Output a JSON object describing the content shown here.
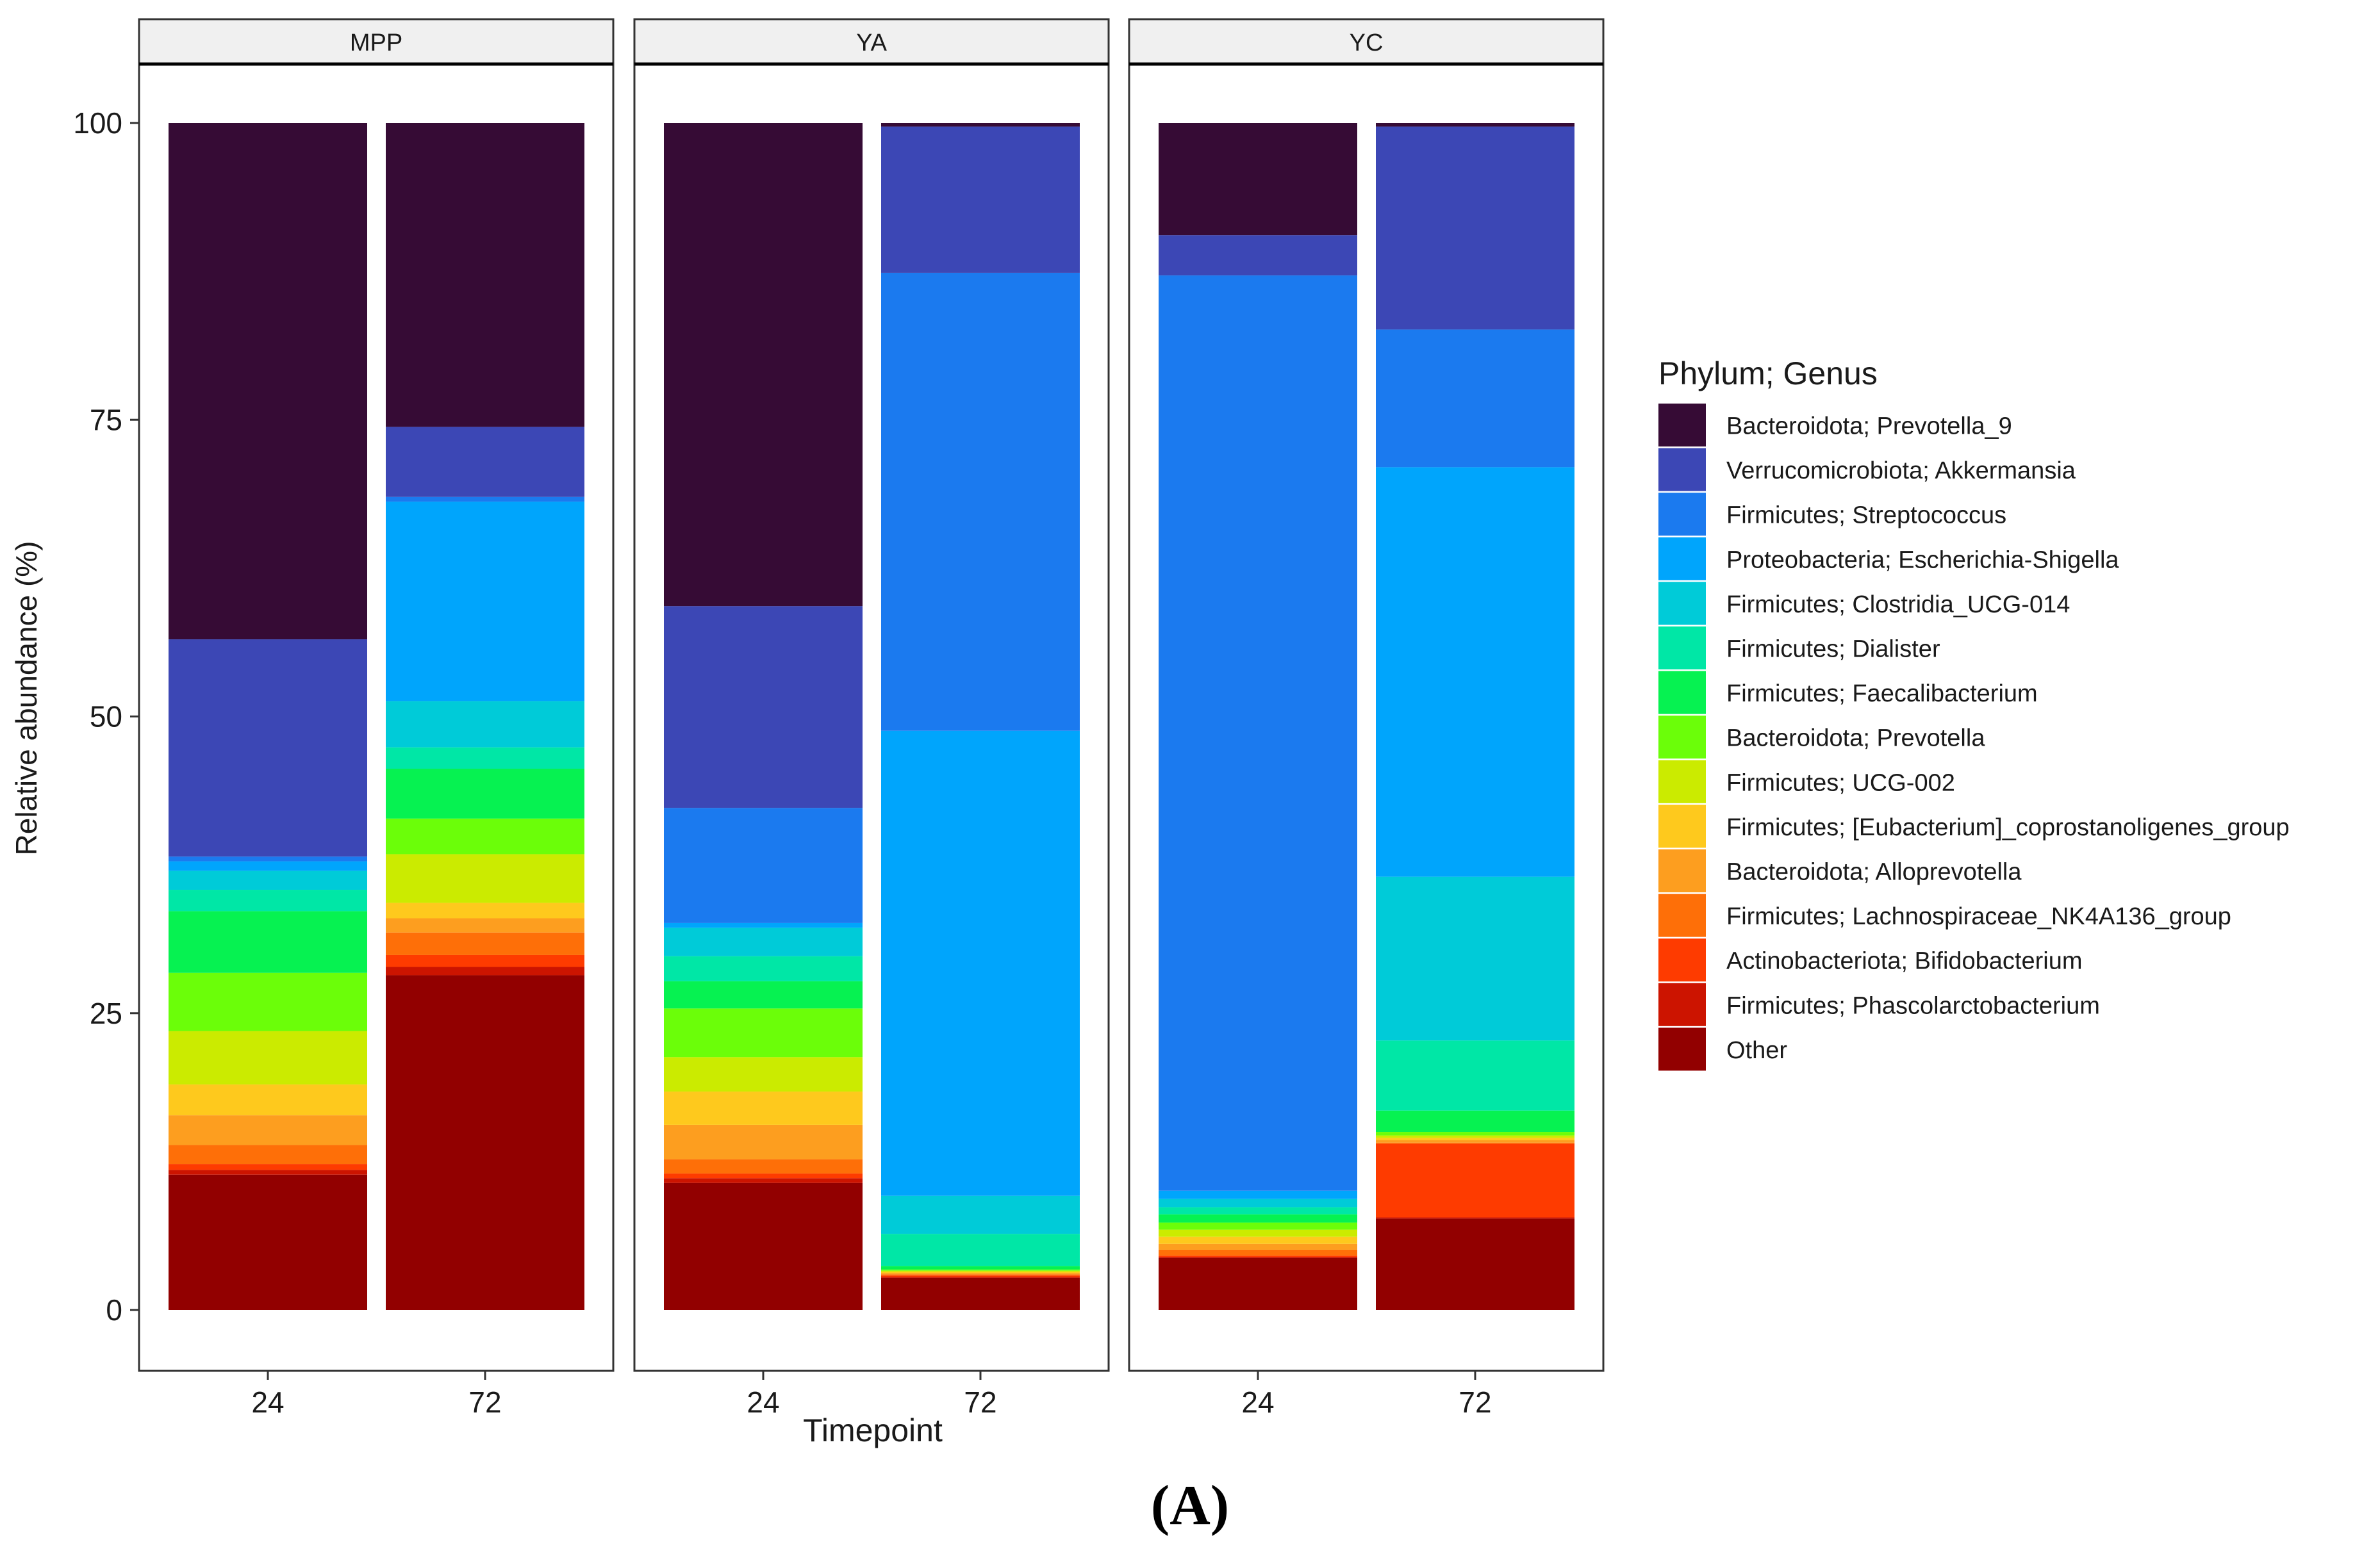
{
  "chart_data": {
    "type": "bar",
    "stacked": true,
    "facets": [
      "MPP",
      "YA",
      "YC"
    ],
    "categories": [
      "24",
      "72"
    ],
    "xlabel": "Timepoint",
    "ylabel": "Relative abundance (%)",
    "ylim": [
      0,
      100
    ],
    "yticks": [
      0,
      25,
      50,
      75,
      100
    ],
    "legend_title": "Phylum; Genus",
    "legend_position": "right",
    "series": [
      {
        "name": "Bacteroidota; Prevotella_9",
        "color": "#360b35",
        "values": {
          "MPP": [
            43.5,
            25.6
          ],
          "YA": [
            40.7,
            0.3
          ],
          "YC": [
            9.5,
            0.3
          ]
        }
      },
      {
        "name": "Verrucomicrobiota; Akkermansia",
        "color": "#3c47b5",
        "values": {
          "MPP": [
            18.3,
            5.9
          ],
          "YA": [
            17.0,
            12.3
          ],
          "YC": [
            3.4,
            17.1
          ]
        }
      },
      {
        "name": "Firmicutes; Streptococcus",
        "color": "#1b7aef",
        "values": {
          "MPP": [
            0.4,
            0.4
          ],
          "YA": [
            9.7,
            38.5
          ],
          "YC": [
            77.5,
            11.6
          ]
        }
      },
      {
        "name": "Proteobacteria; Escherichia-Shigella",
        "color": "#00a5fc",
        "values": {
          "MPP": [
            0.8,
            16.8
          ],
          "YA": [
            0.4,
            39.1
          ],
          "YC": [
            0.7,
            34.5
          ]
        }
      },
      {
        "name": "Firmicutes; Clostridia_UCG-014",
        "color": "#00cbd8",
        "values": {
          "MPP": [
            1.6,
            3.9
          ],
          "YA": [
            2.4,
            3.2
          ],
          "YC": [
            0.7,
            13.8
          ]
        }
      },
      {
        "name": "Firmicutes; Dialister",
        "color": "#00e7a6",
        "values": {
          "MPP": [
            1.8,
            1.8
          ],
          "YA": [
            2.1,
            2.7
          ],
          "YC": [
            0.6,
            5.9
          ]
        }
      },
      {
        "name": "Firmicutes; Faecalibacterium",
        "color": "#06f251",
        "values": {
          "MPP": [
            5.2,
            4.2
          ],
          "YA": [
            2.3,
            0.3
          ],
          "YC": [
            0.7,
            1.8
          ]
        }
      },
      {
        "name": "Bacteroidota; Prevotella",
        "color": "#6bfe09",
        "values": {
          "MPP": [
            4.9,
            3.0
          ],
          "YA": [
            4.1,
            0.1
          ],
          "YC": [
            0.6,
            0.3
          ]
        }
      },
      {
        "name": "Firmicutes; UCG-002",
        "color": "#cbeb00",
        "values": {
          "MPP": [
            4.5,
            4.1
          ],
          "YA": [
            2.9,
            0.1
          ],
          "YC": [
            0.6,
            0.2
          ]
        }
      },
      {
        "name": "Firmicutes; [Eubacterium]_coprostanoligenes_group",
        "color": "#fec91d",
        "values": {
          "MPP": [
            2.6,
            1.3
          ],
          "YA": [
            2.8,
            0.1
          ],
          "YC": [
            0.6,
            0.2
          ]
        }
      },
      {
        "name": "Bacteroidota; Alloprevotella",
        "color": "#fd9e1f",
        "values": {
          "MPP": [
            2.5,
            1.2
          ],
          "YA": [
            2.9,
            0.1
          ],
          "YC": [
            0.5,
            0.2
          ]
        }
      },
      {
        "name": "Firmicutes; Lachnospiraceae_NK4A136_group",
        "color": "#fe6f08",
        "values": {
          "MPP": [
            1.6,
            1.9
          ],
          "YA": [
            1.2,
            0.1
          ],
          "YC": [
            0.5,
            0.1
          ]
        }
      },
      {
        "name": "Actinobacteriota; Bifidobacterium",
        "color": "#fe3b00",
        "values": {
          "MPP": [
            0.5,
            1.0
          ],
          "YA": [
            0.4,
            0.1
          ],
          "YC": [
            0.1,
            6.2
          ]
        }
      },
      {
        "name": "Firmicutes; Phascolarctobacterium",
        "color": "#cc1400",
        "values": {
          "MPP": [
            0.4,
            0.7
          ],
          "YA": [
            0.4,
            0.1
          ],
          "YC": [
            0.1,
            0.1
          ]
        }
      },
      {
        "name": "Other",
        "color": "#920000",
        "values": {
          "MPP": [
            11.4,
            28.2
          ],
          "YA": [
            10.7,
            2.7
          ],
          "YC": [
            4.4,
            7.7
          ]
        }
      }
    ]
  },
  "caption": "(A)"
}
